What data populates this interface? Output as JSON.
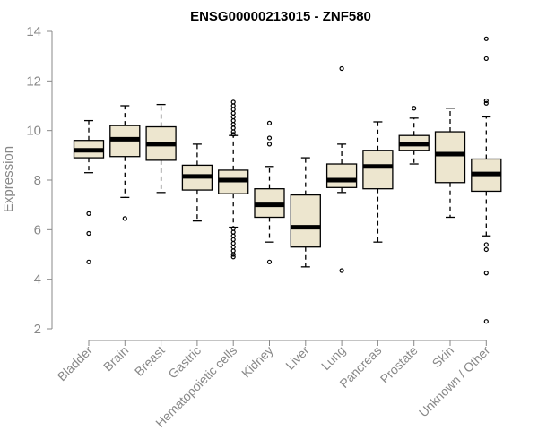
{
  "chart_data": {
    "type": "boxplot",
    "title": "ENSG00000213015 - ZNF580",
    "ylabel": "Expression",
    "xlabel": "",
    "ylim": [
      2,
      14
    ],
    "yticks": [
      2,
      4,
      6,
      8,
      10,
      12,
      14
    ],
    "box_color": "#ede6cf",
    "categories": [
      "Bladder",
      "Brain",
      "Breast",
      "Gastric",
      "Hematopoietic cells",
      "Kidney",
      "Liver",
      "Lung",
      "Pancreas",
      "Prostate",
      "Skin",
      "Unknown / Other"
    ],
    "boxes": [
      {
        "q1": 8.9,
        "median": 9.2,
        "q3": 9.6,
        "whisker_low": 8.3,
        "whisker_high": 10.4,
        "outliers": [
          6.65,
          5.85,
          4.7
        ]
      },
      {
        "q1": 8.95,
        "median": 9.65,
        "q3": 10.2,
        "whisker_low": 7.3,
        "whisker_high": 11.0,
        "outliers": [
          6.45
        ]
      },
      {
        "q1": 8.8,
        "median": 9.45,
        "q3": 10.15,
        "whisker_low": 7.5,
        "whisker_high": 11.05,
        "outliers": []
      },
      {
        "q1": 7.6,
        "median": 8.15,
        "q3": 8.6,
        "whisker_low": 6.35,
        "whisker_high": 9.45,
        "outliers": []
      },
      {
        "q1": 7.45,
        "median": 8.0,
        "q3": 8.4,
        "whisker_low": 6.1,
        "whisker_high": 9.8,
        "outliers": [
          11.15,
          11.0,
          10.85,
          10.7,
          10.55,
          10.4,
          10.25,
          10.1,
          9.95,
          9.85,
          6.05,
          5.9,
          5.75,
          5.6,
          5.45,
          5.3,
          5.15,
          5.0,
          4.9
        ]
      },
      {
        "q1": 6.5,
        "median": 7.0,
        "q3": 7.65,
        "whisker_low": 5.5,
        "whisker_high": 8.55,
        "outliers": [
          10.3,
          9.7,
          9.45,
          4.7
        ]
      },
      {
        "q1": 5.3,
        "median": 6.1,
        "q3": 7.4,
        "whisker_low": 4.5,
        "whisker_high": 8.9,
        "outliers": []
      },
      {
        "q1": 7.7,
        "median": 8.0,
        "q3": 8.65,
        "whisker_low": 7.5,
        "whisker_high": 9.45,
        "outliers": [
          12.5,
          4.35
        ]
      },
      {
        "q1": 7.65,
        "median": 8.55,
        "q3": 9.2,
        "whisker_low": 5.5,
        "whisker_high": 10.35,
        "outliers": []
      },
      {
        "q1": 9.2,
        "median": 9.45,
        "q3": 9.8,
        "whisker_low": 8.65,
        "whisker_high": 10.5,
        "outliers": [
          10.9
        ]
      },
      {
        "q1": 7.9,
        "median": 9.05,
        "q3": 9.95,
        "whisker_low": 6.5,
        "whisker_high": 10.9,
        "outliers": []
      },
      {
        "q1": 7.55,
        "median": 8.25,
        "q3": 8.85,
        "whisker_low": 5.75,
        "whisker_high": 10.55,
        "outliers": [
          13.7,
          12.9,
          11.2,
          11.1,
          5.4,
          5.2,
          4.25,
          2.3
        ]
      }
    ]
  }
}
